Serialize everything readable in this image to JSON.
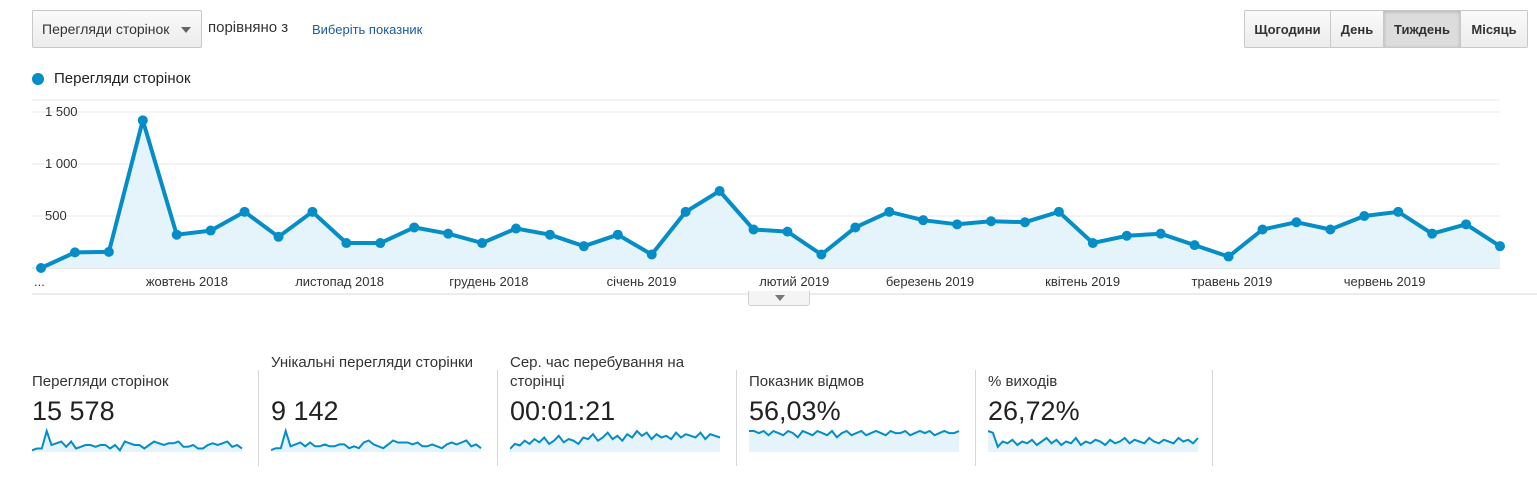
{
  "controls": {
    "metric_select": "Перегляди сторінок",
    "compare_text": "порівняно з",
    "choose_metric_link": "Виберіть показник"
  },
  "period_buttons": [
    {
      "label": "Щогодини",
      "active": false
    },
    {
      "label": "День",
      "active": false
    },
    {
      "label": "Тиждень",
      "active": true
    },
    {
      "label": "Місяць",
      "active": false
    }
  ],
  "colors": {
    "accent": "#058dc7",
    "area": "#e5f3fa",
    "grid": "#e8e8e8"
  },
  "chart_data": {
    "type": "line",
    "series": [
      {
        "name": "Перегляди сторінок",
        "values": [
          0,
          150,
          155,
          1420,
          320,
          360,
          540,
          300,
          540,
          240,
          240,
          390,
          330,
          240,
          380,
          320,
          210,
          320,
          130,
          540,
          740,
          370,
          350,
          130,
          390,
          540,
          460,
          420,
          450,
          440,
          540,
          240,
          310,
          330,
          220,
          110,
          370,
          440,
          370,
          500,
          540,
          330,
          420,
          210
        ]
      }
    ],
    "y_ticks": [
      "1 500",
      "1 000",
      "500"
    ],
    "y_tick_values": [
      1500,
      1000,
      500
    ],
    "ylim": [
      0,
      1500
    ],
    "x_tick_labels": [
      {
        "label": "...",
        "index": 0
      },
      {
        "label": "жовтень 2018",
        "index": 4.3
      },
      {
        "label": "листопад 2018",
        "index": 8.8
      },
      {
        "label": "грудень 2018",
        "index": 13.2
      },
      {
        "label": "січень 2019",
        "index": 17.7
      },
      {
        "label": "лютий 2019",
        "index": 22.2
      },
      {
        "label": "березень 2019",
        "index": 26.2
      },
      {
        "label": "квітень 2019",
        "index": 30.7
      },
      {
        "label": "травень 2019",
        "index": 35.1
      },
      {
        "label": "червень 2019",
        "index": 39.6
      }
    ],
    "grid": true
  },
  "scorecards": [
    {
      "label": "Перегляди сторінок",
      "value": "15 578",
      "spark": [
        1,
        2,
        2,
        12,
        4,
        5,
        6,
        3,
        6,
        2,
        3,
        4,
        4,
        3,
        4,
        4,
        2,
        4,
        1,
        6,
        5,
        4,
        4,
        2,
        4,
        6,
        5,
        4,
        5,
        5,
        6,
        3,
        3,
        4,
        2,
        2,
        4,
        5,
        4,
        5,
        6,
        3,
        4,
        2
      ]
    },
    {
      "label": "Унікальні перегляди сторінки",
      "value": "9 142",
      "spark": [
        1,
        2,
        2,
        11,
        3,
        4,
        5,
        3,
        5,
        3,
        3,
        4,
        3,
        3,
        4,
        4,
        2,
        3,
        2,
        5,
        6,
        4,
        3,
        2,
        4,
        6,
        5,
        5,
        5,
        4,
        5,
        3,
        3,
        4,
        3,
        2,
        4,
        5,
        4,
        5,
        6,
        3,
        4,
        2
      ]
    },
    {
      "label": "Сер. час перебування на сторінці",
      "value": "00:01:21",
      "spark": [
        2,
        5,
        4,
        7,
        5,
        8,
        6,
        9,
        5,
        7,
        10,
        6,
        8,
        7,
        5,
        9,
        8,
        11,
        7,
        9,
        12,
        8,
        10,
        7,
        11,
        9,
        13,
        10,
        12,
        8,
        11,
        9,
        10,
        8,
        12,
        9,
        11,
        10,
        9,
        12,
        8,
        11,
        10,
        9
      ]
    },
    {
      "label": "Показник відмов",
      "value": "56,03%",
      "spark": [
        10,
        10,
        9,
        10,
        8,
        10,
        9,
        8,
        10,
        9,
        7,
        10,
        9,
        8,
        10,
        9,
        8,
        10,
        7,
        9,
        10,
        8,
        9,
        10,
        8,
        9,
        10,
        9,
        8,
        10,
        9,
        9,
        10,
        8,
        9,
        10,
        9,
        10,
        8,
        9,
        10,
        9,
        9,
        10
      ]
    },
    {
      "label": "% виходів",
      "value": "26,72%",
      "spark": [
        12,
        11,
        3,
        6,
        5,
        7,
        4,
        6,
        5,
        7,
        4,
        6,
        8,
        5,
        7,
        4,
        6,
        5,
        8,
        4,
        6,
        5,
        7,
        6,
        4,
        7,
        5,
        6,
        8,
        5,
        7,
        6,
        5,
        8,
        6,
        5,
        7,
        6,
        5,
        8,
        6,
        7,
        5,
        8
      ]
    }
  ]
}
